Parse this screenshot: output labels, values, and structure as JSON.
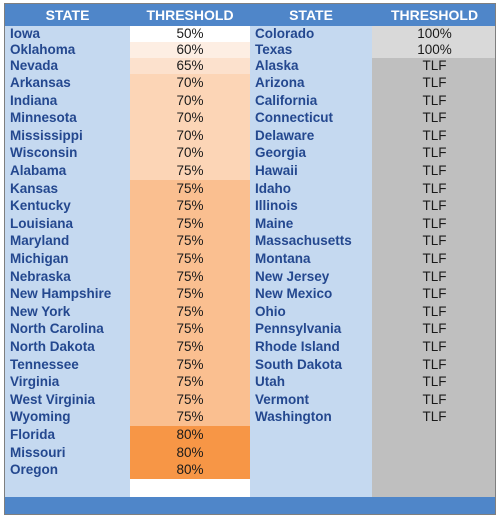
{
  "table": {
    "header": [
      "STATE",
      "THRESHOLD",
      "STATE",
      "THRESHOLD"
    ],
    "left": [
      {
        "state": "Iowa",
        "threshold": "50%",
        "fill": "#ffffff"
      },
      {
        "state": "Oklahoma",
        "threshold": "60%",
        "fill": "#fdeee3"
      },
      {
        "state": "Nevada",
        "threshold": "65%",
        "fill": "#fce1cd"
      },
      {
        "state": "Arkansas",
        "threshold": "70%",
        "fill": "#fcd5b6"
      },
      {
        "state": "Indiana",
        "threshold": "70%",
        "fill": "#fcd5b6"
      },
      {
        "state": "Minnesota",
        "threshold": "70%",
        "fill": "#fcd5b6"
      },
      {
        "state": "Mississippi",
        "threshold": "70%",
        "fill": "#fcd5b6"
      },
      {
        "state": "Wisconsin",
        "threshold": "70%",
        "fill": "#fcd5b6"
      },
      {
        "state": "Alabama",
        "threshold": "75%",
        "fill": "#fcd5b6"
      },
      {
        "state": "Kansas",
        "threshold": "75%",
        "fill": "#fabf90"
      },
      {
        "state": "Kentucky",
        "threshold": "75%",
        "fill": "#fabf90"
      },
      {
        "state": "Louisiana",
        "threshold": "75%",
        "fill": "#fabf90"
      },
      {
        "state": "Maryland",
        "threshold": "75%",
        "fill": "#fabf90"
      },
      {
        "state": "Michigan",
        "threshold": "75%",
        "fill": "#fabf90"
      },
      {
        "state": "Nebraska",
        "threshold": "75%",
        "fill": "#fabf90"
      },
      {
        "state": "New Hampshire",
        "threshold": "75%",
        "fill": "#fabf90"
      },
      {
        "state": "New York",
        "threshold": "75%",
        "fill": "#fabf90"
      },
      {
        "state": "North Carolina",
        "threshold": "75%",
        "fill": "#fabf90"
      },
      {
        "state": "North Dakota",
        "threshold": "75%",
        "fill": "#fabf90"
      },
      {
        "state": "Tennessee",
        "threshold": "75%",
        "fill": "#fabf90"
      },
      {
        "state": "Virginia",
        "threshold": "75%",
        "fill": "#fabf90"
      },
      {
        "state": "West Virginia",
        "threshold": "75%",
        "fill": "#fabf90"
      },
      {
        "state": "Wyoming",
        "threshold": "75%",
        "fill": "#fabf90"
      },
      {
        "state": "Florida",
        "threshold": "80%",
        "fill": "#f79646"
      },
      {
        "state": "Missouri",
        "threshold": "80%",
        "fill": "#f79646"
      },
      {
        "state": "Oregon",
        "threshold": "80%",
        "fill": "#f79646"
      }
    ],
    "right": [
      {
        "state": "Colorado",
        "threshold": "100%",
        "fill": "#d9d9d9"
      },
      {
        "state": "Texas",
        "threshold": "100%",
        "fill": "#d9d9d9"
      },
      {
        "state": "Alaska",
        "threshold": "TLF",
        "fill": "#bfbfbf"
      },
      {
        "state": "Arizona",
        "threshold": "TLF",
        "fill": "#bfbfbf"
      },
      {
        "state": "California",
        "threshold": "TLF",
        "fill": "#bfbfbf"
      },
      {
        "state": "Connecticut",
        "threshold": "TLF",
        "fill": "#bfbfbf"
      },
      {
        "state": "Delaware",
        "threshold": "TLF",
        "fill": "#bfbfbf"
      },
      {
        "state": "Georgia",
        "threshold": "TLF",
        "fill": "#bfbfbf"
      },
      {
        "state": "Hawaii",
        "threshold": "TLF",
        "fill": "#bfbfbf"
      },
      {
        "state": "Idaho",
        "threshold": "TLF",
        "fill": "#bfbfbf"
      },
      {
        "state": "Illinois",
        "threshold": "TLF",
        "fill": "#bfbfbf"
      },
      {
        "state": "Maine",
        "threshold": "TLF",
        "fill": "#bfbfbf"
      },
      {
        "state": "Massachusetts",
        "threshold": "TLF",
        "fill": "#bfbfbf"
      },
      {
        "state": "Montana",
        "threshold": "TLF",
        "fill": "#bfbfbf"
      },
      {
        "state": "New Jersey",
        "threshold": "TLF",
        "fill": "#bfbfbf"
      },
      {
        "state": "New Mexico",
        "threshold": "TLF",
        "fill": "#bfbfbf"
      },
      {
        "state": "Ohio",
        "threshold": "TLF",
        "fill": "#bfbfbf"
      },
      {
        "state": "Pennsylvania",
        "threshold": "TLF",
        "fill": "#bfbfbf"
      },
      {
        "state": "Rhode Island",
        "threshold": "TLF",
        "fill": "#bfbfbf"
      },
      {
        "state": "South Dakota",
        "threshold": "TLF",
        "fill": "#bfbfbf"
      },
      {
        "state": "Utah",
        "threshold": "TLF",
        "fill": "#bfbfbf"
      },
      {
        "state": "Vermont",
        "threshold": "TLF",
        "fill": "#bfbfbf"
      },
      {
        "state": "Washington",
        "threshold": "TLF",
        "fill": "#bfbfbf"
      }
    ]
  }
}
